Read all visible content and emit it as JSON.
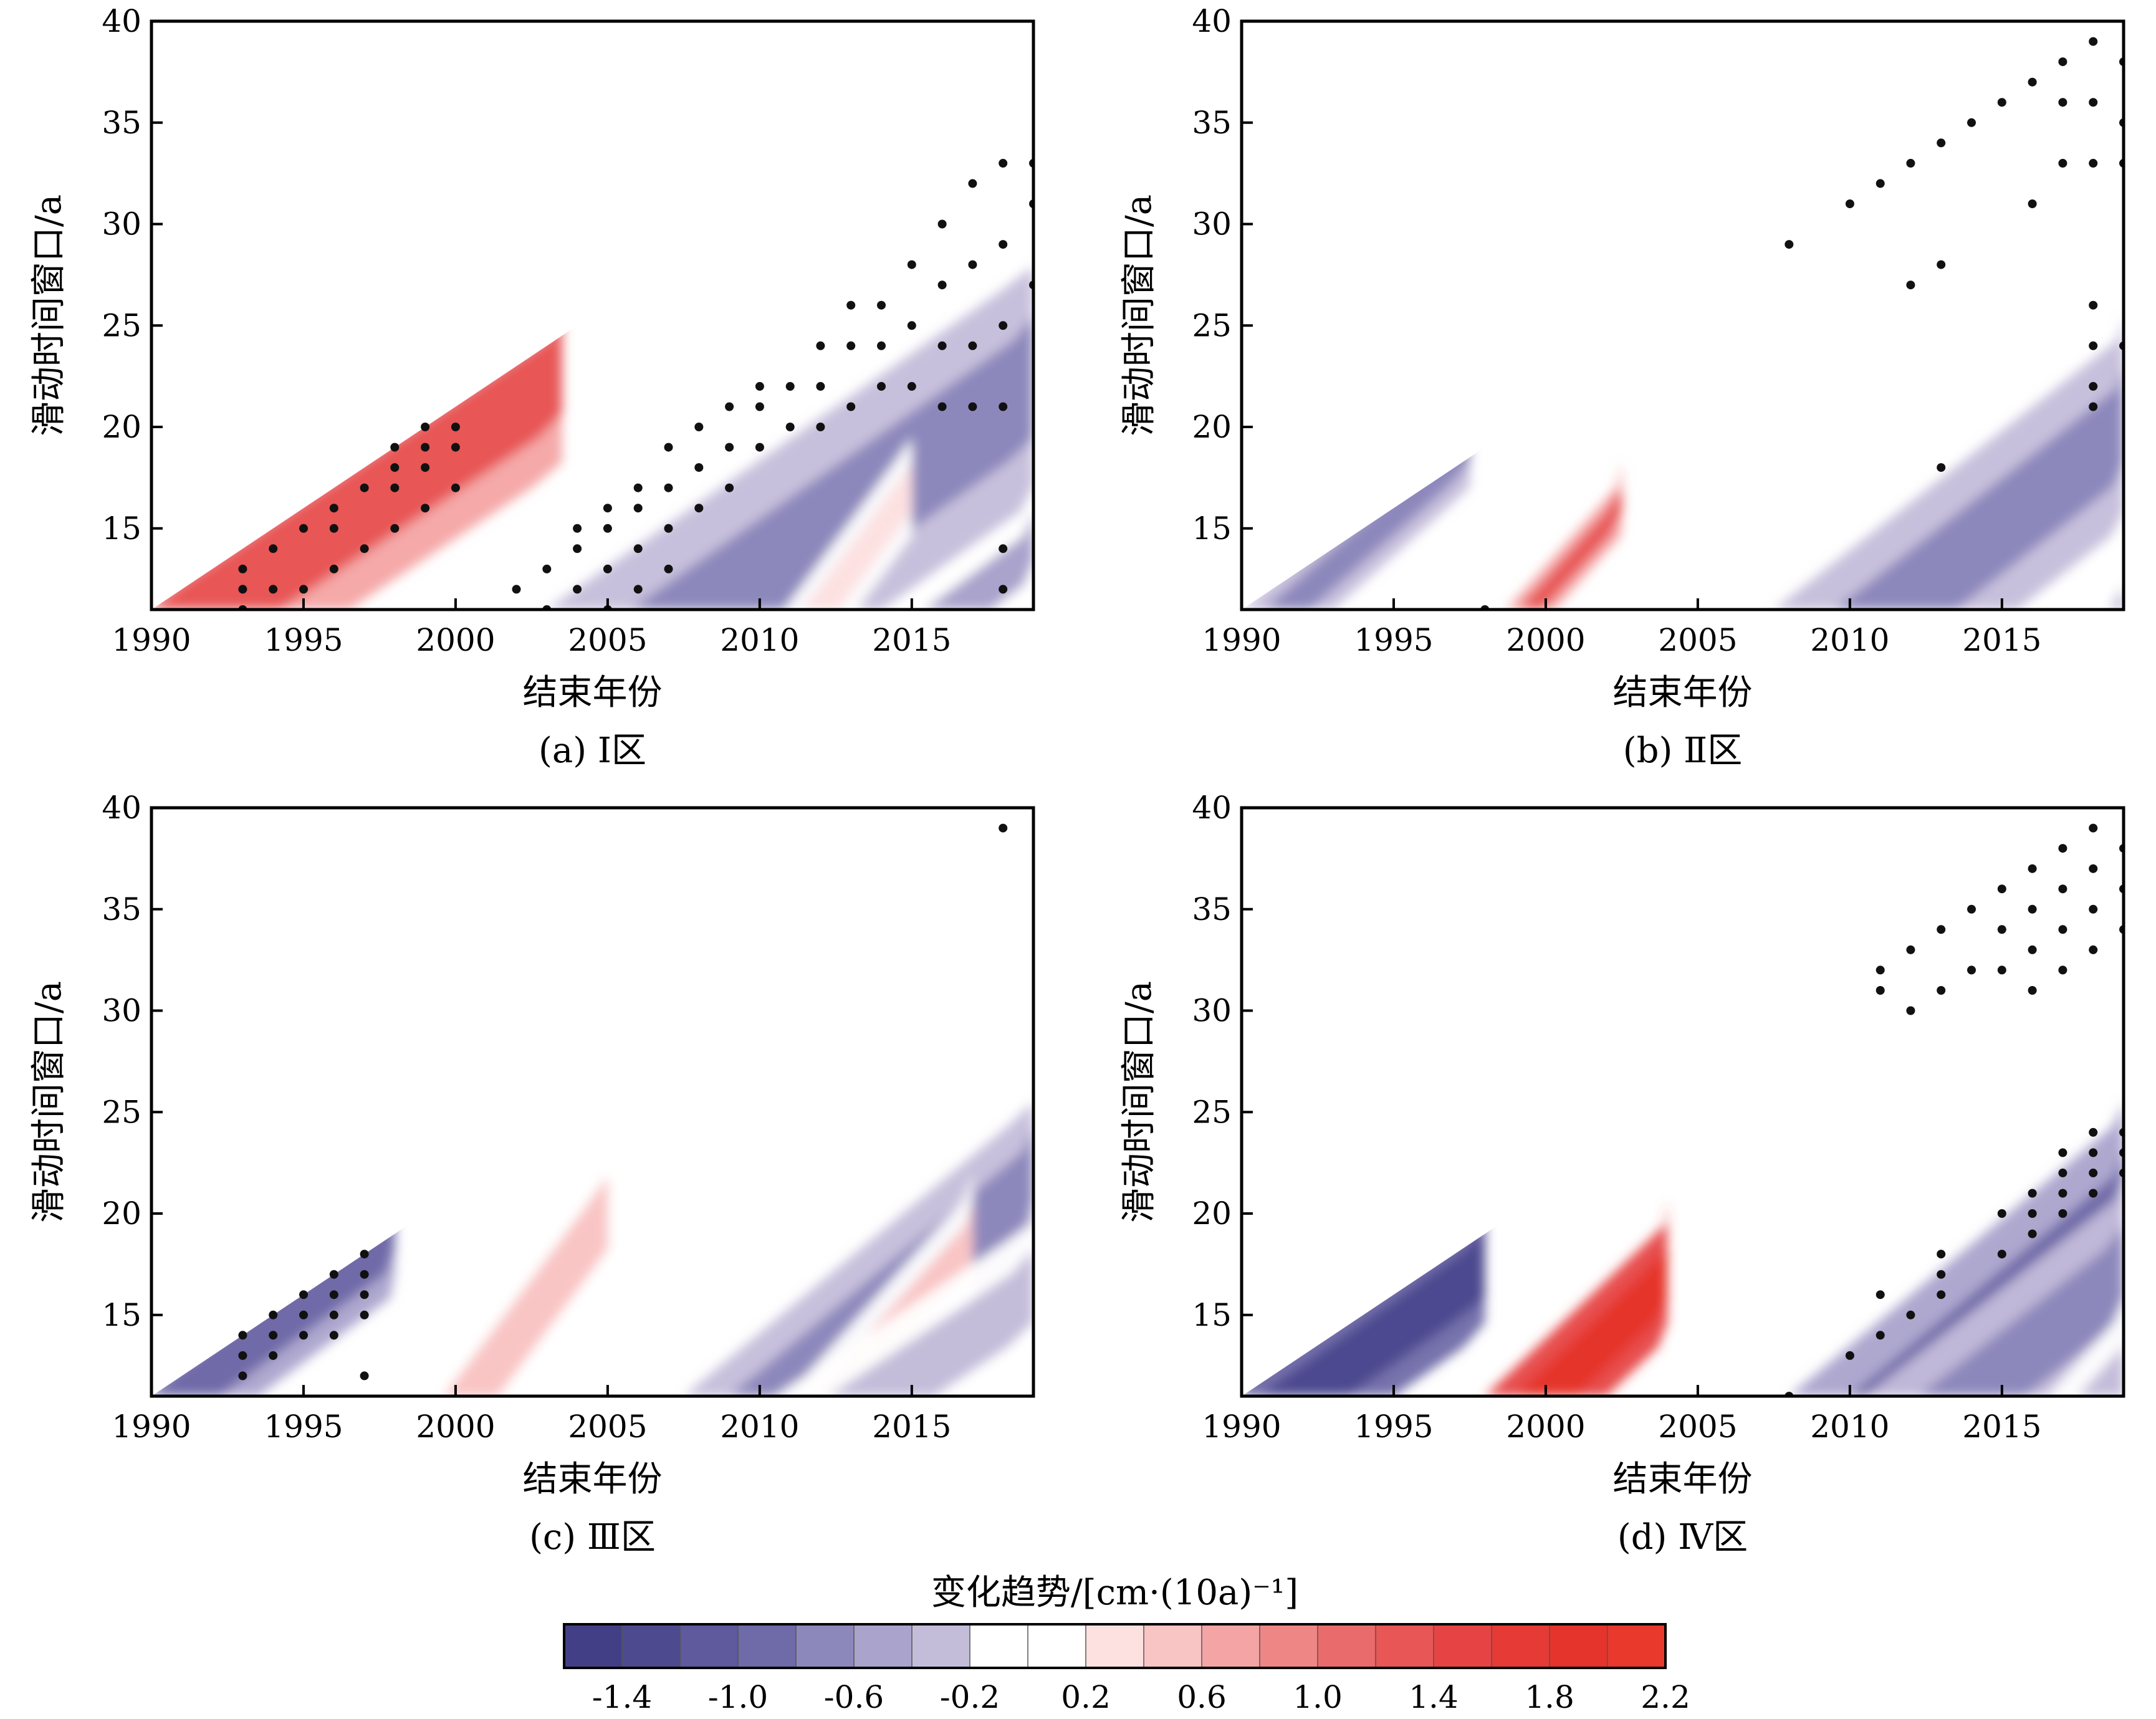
{
  "chart_data": {
    "type": "heatmap",
    "shared": {
      "xlabel": "结束年份",
      "ylabel": "滑动时间窗口/a",
      "xlim": [
        1990,
        2019
      ],
      "ylim": [
        11,
        40
      ],
      "xticks": [
        1990,
        1995,
        2000,
        2005,
        2010,
        2015
      ],
      "yticks": [
        15,
        20,
        25,
        30,
        35,
        40
      ],
      "stipple_meaning": "significant"
    },
    "panels": [
      {
        "label": "(a) Ⅰ区",
        "bands": [
          {
            "y0": 1992.0,
            "slope": 1.0,
            "halfwidth": 4.5,
            "value": 1.2,
            "xmin": 1990,
            "xmax": 2003.5
          },
          {
            "y0": 2008.5,
            "slope": 0.95,
            "halfwidth": 5.5,
            "value": -0.8,
            "xmin": 1999,
            "xmax": 2019
          },
          {
            "y0": 2016.5,
            "slope": 0.9,
            "halfwidth": 2.2,
            "value": -0.6,
            "xmin": 2015,
            "xmax": 2019
          },
          {
            "y0": 2012.0,
            "slope": 0.5,
            "halfwidth": 1.2,
            "value": 0.3,
            "xmin": 2010,
            "xmax": 2015
          }
        ],
        "dots": [
          [
            1993,
            11
          ],
          [
            1993,
            12
          ],
          [
            1993,
            13
          ],
          [
            1994,
            12
          ],
          [
            1994,
            14
          ],
          [
            1995,
            12
          ],
          [
            1995,
            15
          ],
          [
            1996,
            13
          ],
          [
            1996,
            15
          ],
          [
            1996,
            16
          ],
          [
            1997,
            14
          ],
          [
            1997,
            17
          ],
          [
            1998,
            15
          ],
          [
            1998,
            17
          ],
          [
            1998,
            18
          ],
          [
            1998,
            19
          ],
          [
            1999,
            16
          ],
          [
            1999,
            18
          ],
          [
            1999,
            19
          ],
          [
            1999,
            20
          ],
          [
            2000,
            17
          ],
          [
            2000,
            19
          ],
          [
            2000,
            20
          ],
          [
            2002,
            12
          ],
          [
            2003,
            11
          ],
          [
            2003,
            13
          ],
          [
            2004,
            12
          ],
          [
            2004,
            14
          ],
          [
            2004,
            15
          ],
          [
            2005,
            11
          ],
          [
            2005,
            13
          ],
          [
            2005,
            15
          ],
          [
            2005,
            16
          ],
          [
            2006,
            12
          ],
          [
            2006,
            14
          ],
          [
            2006,
            16
          ],
          [
            2006,
            17
          ],
          [
            2007,
            13
          ],
          [
            2007,
            15
          ],
          [
            2007,
            17
          ],
          [
            2007,
            19
          ],
          [
            2008,
            16
          ],
          [
            2008,
            18
          ],
          [
            2008,
            20
          ],
          [
            2009,
            17
          ],
          [
            2009,
            19
          ],
          [
            2009,
            21
          ],
          [
            2010,
            19
          ],
          [
            2010,
            21
          ],
          [
            2010,
            22
          ],
          [
            2011,
            20
          ],
          [
            2011,
            22
          ],
          [
            2012,
            20
          ],
          [
            2012,
            22
          ],
          [
            2012,
            24
          ],
          [
            2013,
            21
          ],
          [
            2013,
            24
          ],
          [
            2013,
            26
          ],
          [
            2014,
            22
          ],
          [
            2014,
            24
          ],
          [
            2014,
            26
          ],
          [
            2015,
            22
          ],
          [
            2015,
            25
          ],
          [
            2015,
            28
          ],
          [
            2016,
            21
          ],
          [
            2016,
            24
          ],
          [
            2016,
            27
          ],
          [
            2016,
            30
          ],
          [
            2017,
            21
          ],
          [
            2017,
            24
          ],
          [
            2017,
            28
          ],
          [
            2017,
            32
          ],
          [
            2018,
            21
          ],
          [
            2018,
            25
          ],
          [
            2018,
            29
          ],
          [
            2018,
            33
          ],
          [
            2019,
            27
          ],
          [
            2019,
            31
          ],
          [
            2019,
            33
          ],
          [
            2018,
            12
          ],
          [
            2018,
            14
          ]
        ]
      },
      {
        "label": "(b) Ⅱ区",
        "bands": [
          {
            "y0": 1991.5,
            "slope": 0.75,
            "halfwidth": 1.5,
            "value": -0.7,
            "xmin": 1990,
            "xmax": 1997.5
          },
          {
            "y0": 1999.5,
            "slope": 0.6,
            "halfwidth": 0.8,
            "value": 1.2,
            "xmin": 1998,
            "xmax": 2002.5
          },
          {
            "y0": 2011.5,
            "slope": 0.85,
            "halfwidth": 4.0,
            "value": -0.8,
            "xmin": 2003,
            "xmax": 2019
          },
          {
            "y0": 2020.5,
            "slope": 1.1,
            "halfwidth": 4.0,
            "value": -0.3,
            "xmin": 2004,
            "xmax": 2019
          }
        ],
        "dots": [
          [
            1998,
            11
          ],
          [
            2008,
            29
          ],
          [
            2010,
            31
          ],
          [
            2011,
            32
          ],
          [
            2012,
            27
          ],
          [
            2012,
            33
          ],
          [
            2013,
            28
          ],
          [
            2013,
            34
          ],
          [
            2014,
            35
          ],
          [
            2015,
            36
          ],
          [
            2016,
            31
          ],
          [
            2016,
            37
          ],
          [
            2017,
            33
          ],
          [
            2017,
            36
          ],
          [
            2017,
            38
          ],
          [
            2018,
            22
          ],
          [
            2018,
            21
          ],
          [
            2018,
            24
          ],
          [
            2018,
            26
          ],
          [
            2018,
            33
          ],
          [
            2018,
            36
          ],
          [
            2018,
            39
          ],
          [
            2019,
            24
          ],
          [
            2019,
            33
          ],
          [
            2019,
            35
          ],
          [
            2019,
            38
          ],
          [
            2013,
            18
          ]
        ]
      },
      {
        "label": "(c) Ⅲ区",
        "bands": [
          {
            "y0": 1991.0,
            "slope": 0.9,
            "halfwidth": 2.5,
            "value": -1.0,
            "xmin": 1990,
            "xmax": 1998
          },
          {
            "y0": 2000.5,
            "slope": 0.5,
            "halfwidth": 1.8,
            "value": 0.5,
            "xmin": 1998,
            "xmax": 2005
          },
          {
            "y0": 2010.5,
            "slope": 0.8,
            "halfwidth": 3.0,
            "value": -0.8,
            "xmin": 2004,
            "xmax": 2019
          },
          {
            "y0": 2012.5,
            "slope": 0.6,
            "halfwidth": 1.6,
            "value": 0.4,
            "xmin": 2010,
            "xmax": 2017
          },
          {
            "y0": 2014.0,
            "slope": 1.0,
            "halfwidth": 3.5,
            "value": -0.3,
            "xmin": 2000,
            "xmax": 2019
          }
        ],
        "dots": [
          [
            1993,
            12
          ],
          [
            1993,
            13
          ],
          [
            1993,
            14
          ],
          [
            1994,
            13
          ],
          [
            1994,
            14
          ],
          [
            1994,
            15
          ],
          [
            1995,
            14
          ],
          [
            1995,
            15
          ],
          [
            1995,
            16
          ],
          [
            1996,
            14
          ],
          [
            1996,
            15
          ],
          [
            1996,
            16
          ],
          [
            1996,
            17
          ],
          [
            1997,
            12
          ],
          [
            1997,
            15
          ],
          [
            1997,
            16
          ],
          [
            1997,
            17
          ],
          [
            1997,
            18
          ],
          [
            2018,
            39
          ]
        ]
      },
      {
        "label": "(d) Ⅳ区",
        "bands": [
          {
            "y0": 1992.0,
            "slope": 0.95,
            "halfwidth": 3.0,
            "value": -1.3,
            "xmin": 1990,
            "xmax": 1998
          },
          {
            "y0": 2000.0,
            "slope": 0.7,
            "halfwidth": 2.0,
            "value": 1.8,
            "xmin": 1998,
            "xmax": 2004
          },
          {
            "y0": 2012.0,
            "slope": 0.8,
            "halfwidth": 4.0,
            "value": -1.0,
            "xmin": 2004,
            "xmax": 2019
          },
          {
            "y0": 2014.0,
            "slope": 0.85,
            "halfwidth": 3.5,
            "value": -0.7,
            "xmin": 2000,
            "xmax": 2019
          },
          {
            "y0": 2018.5,
            "slope": 0.6,
            "halfwidth": 2.0,
            "value": -0.3,
            "xmin": 2015,
            "xmax": 2019
          }
        ],
        "dots": [
          [
            2011,
            31
          ],
          [
            2011,
            32
          ],
          [
            2012,
            30
          ],
          [
            2012,
            33
          ],
          [
            2013,
            31
          ],
          [
            2013,
            34
          ],
          [
            2014,
            32
          ],
          [
            2014,
            35
          ],
          [
            2015,
            32
          ],
          [
            2015,
            34
          ],
          [
            2015,
            36
          ],
          [
            2016,
            31
          ],
          [
            2016,
            33
          ],
          [
            2016,
            35
          ],
          [
            2016,
            37
          ],
          [
            2017,
            32
          ],
          [
            2017,
            34
          ],
          [
            2017,
            36
          ],
          [
            2017,
            38
          ],
          [
            2018,
            33
          ],
          [
            2018,
            35
          ],
          [
            2018,
            37
          ],
          [
            2018,
            39
          ],
          [
            2019,
            34
          ],
          [
            2019,
            36
          ],
          [
            2019,
            38
          ],
          [
            2010,
            13
          ],
          [
            2011,
            14
          ],
          [
            2011,
            16
          ],
          [
            2012,
            15
          ],
          [
            2013,
            16
          ],
          [
            2013,
            17
          ],
          [
            2013,
            18
          ],
          [
            2015,
            18
          ],
          [
            2015,
            20
          ],
          [
            2016,
            19
          ],
          [
            2016,
            20
          ],
          [
            2016,
            21
          ],
          [
            2017,
            20
          ],
          [
            2017,
            21
          ],
          [
            2017,
            22
          ],
          [
            2017,
            23
          ],
          [
            2018,
            21
          ],
          [
            2018,
            22
          ],
          [
            2018,
            23
          ],
          [
            2018,
            24
          ],
          [
            2019,
            22
          ],
          [
            2019,
            23
          ],
          [
            2019,
            24
          ],
          [
            2008,
            11
          ]
        ]
      }
    ],
    "colorbar": {
      "title": "变化趋势/[cm·(10a)⁻¹]",
      "tick_labels": [
        "-1.4",
        "-1.0",
        "-0.6",
        "-0.2",
        "0.2",
        "0.6",
        "1.0",
        "1.4",
        "1.8",
        "2.2"
      ],
      "levels": [
        -1.6,
        -1.4,
        -1.2,
        -1.0,
        -0.8,
        -0.6,
        -0.4,
        -0.2,
        0.0,
        0.2,
        0.4,
        0.6,
        0.8,
        1.0,
        1.2,
        1.4,
        1.6,
        1.8,
        2.0,
        2.2
      ],
      "colors": [
        "#433f86",
        "#4e4a90",
        "#5e5a9d",
        "#6f6aa8",
        "#8d88bc",
        "#aaa3cc",
        "#c4bdda",
        "#ffffff",
        "#ffffff",
        "#fde1e1",
        "#f9c4c4",
        "#f4a4a4",
        "#ef8686",
        "#ea6b6b",
        "#e85656",
        "#e64444",
        "#e53a35",
        "#e5342c",
        "#e8392c"
      ]
    }
  }
}
